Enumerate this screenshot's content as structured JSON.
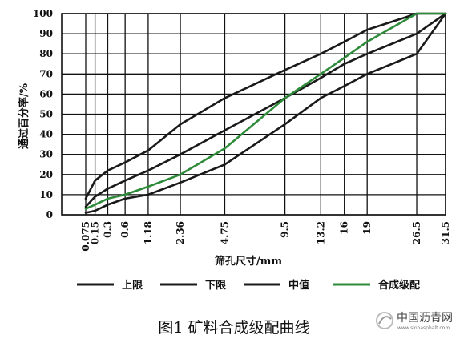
{
  "chart_data": {
    "type": "line",
    "xlabel": "筛孔尺寸/mm",
    "ylabel": "通过百分率/%",
    "ylim": [
      0,
      100
    ],
    "yticks": [
      0,
      10,
      20,
      30,
      40,
      50,
      60,
      70,
      80,
      90,
      100
    ],
    "x_tick_labels": [
      "0.075",
      "0.15",
      "0.3",
      "0.6",
      "1.18",
      "2.36",
      "4.75",
      "9.5",
      "13.2",
      "16",
      "19",
      "26.5",
      "31.5"
    ],
    "grid": true,
    "legend_position": "bottom",
    "series": [
      {
        "name": "上限",
        "color": "#1a1a1a",
        "values": [
          8,
          17,
          22,
          26,
          32,
          45,
          58,
          72,
          80,
          86,
          92,
          100,
          100
        ]
      },
      {
        "name": "下限",
        "color": "#1a1a1a",
        "values": [
          1,
          2,
          5,
          8,
          10,
          16,
          25,
          45,
          58,
          64,
          70,
          80,
          100
        ]
      },
      {
        "name": "中值",
        "color": "#1a1a1a",
        "values": [
          4,
          9,
          13,
          17,
          22,
          30,
          42,
          58,
          68,
          75,
          80,
          90,
          100
        ]
      },
      {
        "name": "合成级配",
        "color": "#2e8b3a",
        "values": [
          3,
          5,
          8,
          10,
          14,
          20,
          33,
          58,
          70,
          78,
          86,
          100,
          100
        ]
      }
    ]
  },
  "caption": "图1   矿料合成级配曲线",
  "watermark": {
    "text": "中国沥青网",
    "url": "www.sinoasphalt.com"
  }
}
